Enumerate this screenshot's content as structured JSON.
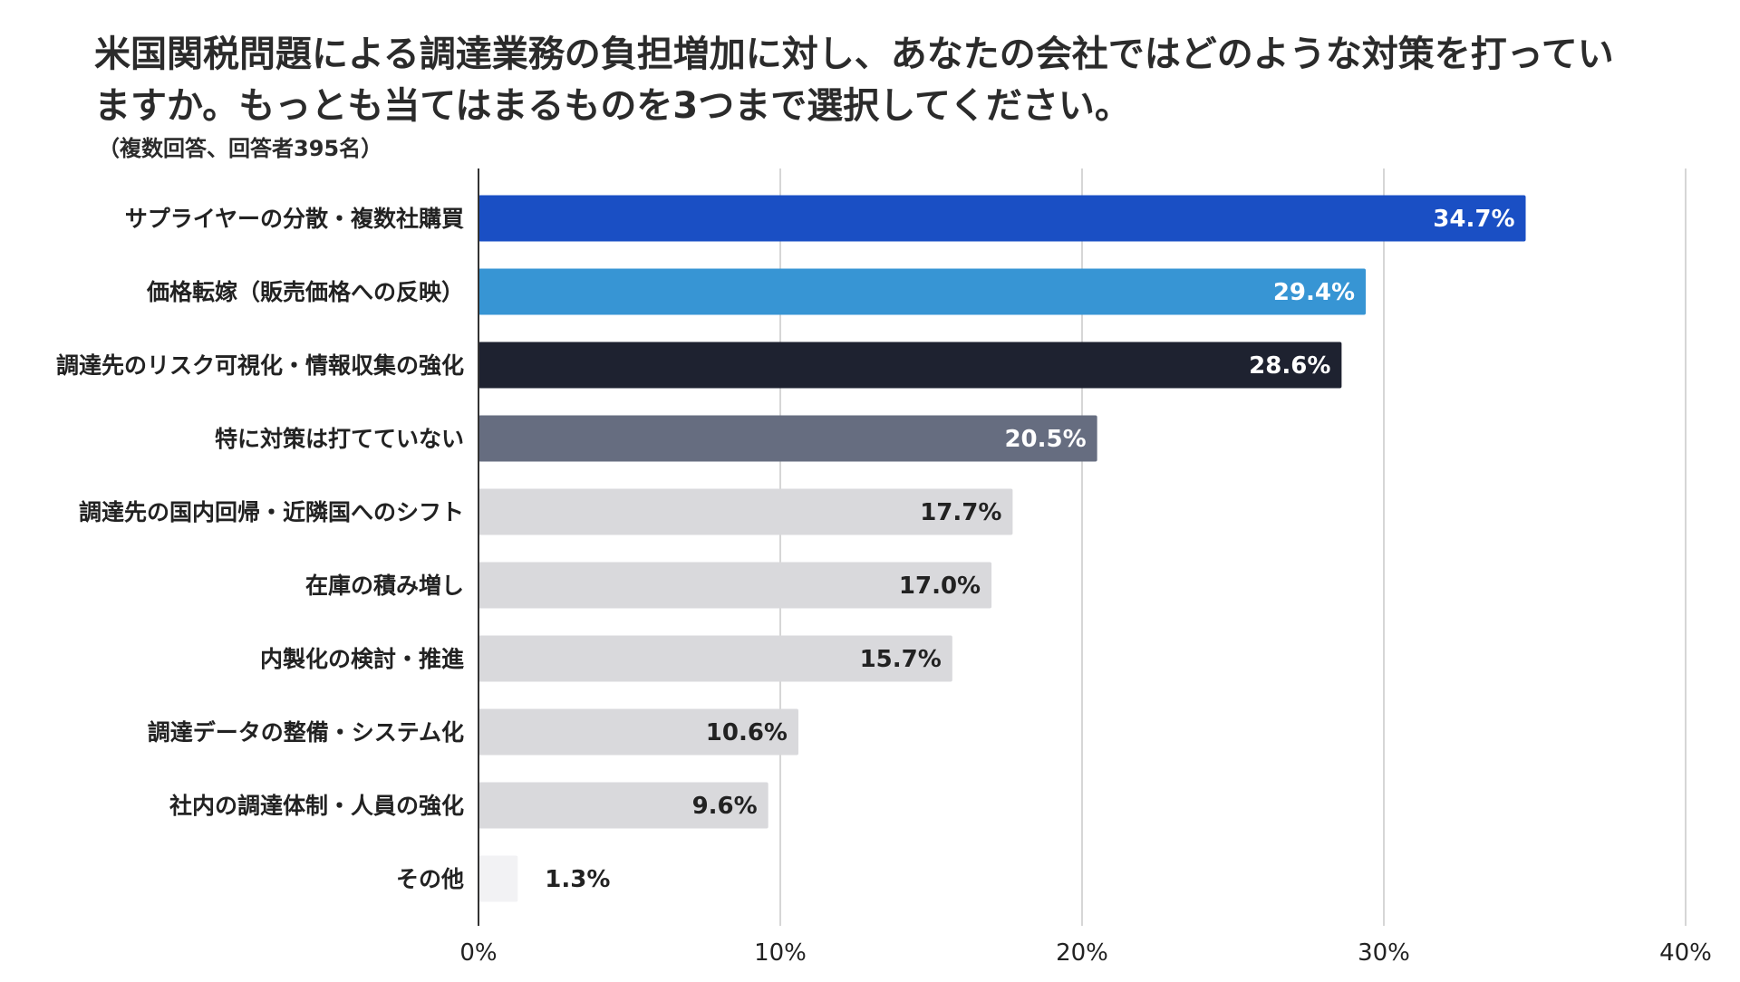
{
  "chart_data": {
    "type": "bar",
    "orientation": "horizontal",
    "title_lines": [
      "米国関税問題による調達業務の負担増加に対し、あなたの会社ではどのような対策を打ってい",
      "ますか。もっとも当てはまるものを3つまで選択してください。"
    ],
    "subtitle": "（複数回答、回答者395名）",
    "categories": [
      "サプライヤーの分散・複数社購買",
      "価格転嫁（販売価格への反映）",
      "調達先のリスク可視化・情報収集の強化",
      "特に対策は打てていない",
      "調達先の国内回帰・近隣国へのシフト",
      "在庫の積み増し",
      "内製化の検討・推進",
      "調達データの整備・システム化",
      "社内の調達体制・人員の強化",
      "その他"
    ],
    "values": [
      34.7,
      29.4,
      28.6,
      20.5,
      17.7,
      17.0,
      15.7,
      10.6,
      9.6,
      1.3
    ],
    "value_labels": [
      "34.7%",
      "29.4%",
      "28.6%",
      "20.5%",
      "17.7%",
      "17.0%",
      "15.7%",
      "10.6%",
      "9.6%",
      "1.3%"
    ],
    "bar_colors": [
      "#1a4fc4",
      "#3795d4",
      "#1e2230",
      "#666d80",
      "#d9d9dc",
      "#d9d9dc",
      "#d9d9dc",
      "#d9d9dc",
      "#d9d9dc",
      "#f2f2f4"
    ],
    "label_colors": [
      "#ffffff",
      "#ffffff",
      "#ffffff",
      "#ffffff",
      "#222222",
      "#222222",
      "#222222",
      "#222222",
      "#222222",
      "#222222"
    ],
    "xlim": [
      0,
      40
    ],
    "xticks": [
      0,
      10,
      20,
      30,
      40
    ],
    "xtick_labels": [
      "0%",
      "10%",
      "20%",
      "30%",
      "40%"
    ],
    "grid": true,
    "xlabel": "",
    "ylabel": ""
  }
}
